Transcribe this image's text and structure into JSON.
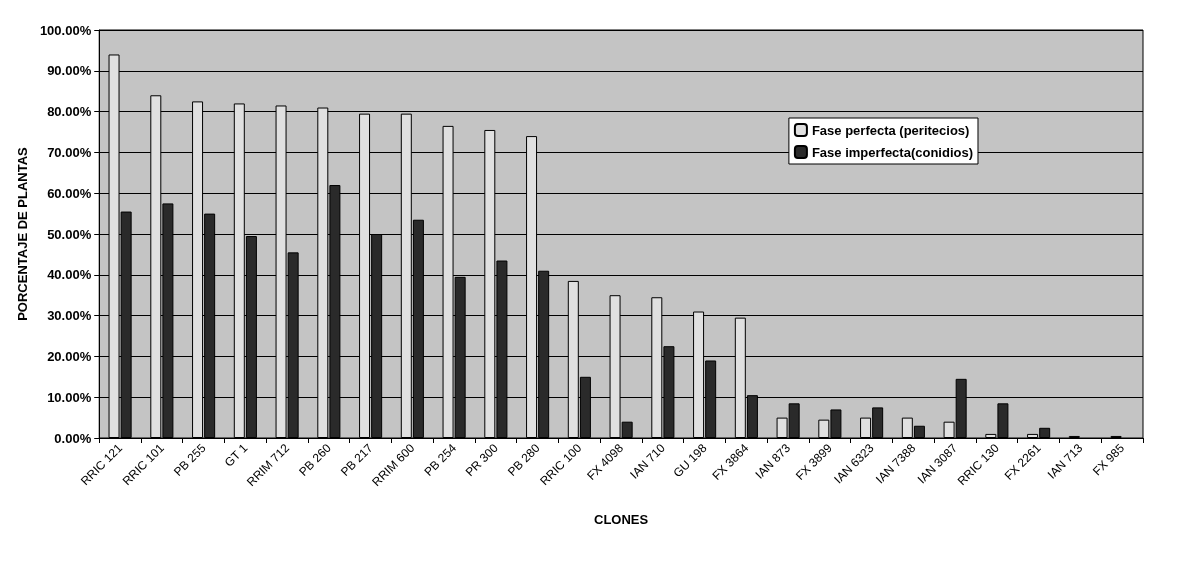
{
  "chart_data": {
    "type": "bar",
    "xlabel": "CLONES",
    "ylabel": "PORCENTAJE DE PLANTAS",
    "categories": [
      "RRIC 121",
      "RRIC 101",
      "PB 255",
      "GT 1",
      "RRIM 712",
      "PB 260",
      "PB 217",
      "RRIM 600",
      "PB 254",
      "PR 300",
      "PB 280",
      "RRIC 100",
      "FX 4098",
      "IAN 710",
      "GU 198",
      "FX 3864",
      "IAN 873",
      "FX 3899",
      "IAN 6323",
      "IAN 7388",
      "IAN 3087",
      "RRIC 130",
      "FX 2261",
      "IAN 713",
      "FX 985"
    ],
    "series": [
      {
        "name": "Fase perfecta (peritecios)",
        "color": "#e0e0e0",
        "values": [
          94,
          84,
          82.5,
          82,
          81.5,
          81,
          79.5,
          79.5,
          76.5,
          75.5,
          74,
          38.5,
          35,
          34.5,
          31,
          29.5,
          5,
          4.5,
          5,
          5,
          4,
          1,
          1,
          0.5,
          0.5
        ]
      },
      {
        "name": "Fase imperfecta(conidios)",
        "color": "#2a2a2a",
        "values": [
          55.5,
          57.5,
          55,
          49.5,
          45.5,
          62,
          50,
          53.5,
          39.5,
          43.5,
          41,
          15,
          4,
          22.5,
          19,
          10.5,
          8.5,
          7,
          7.5,
          3,
          14.5,
          8.5,
          2.5,
          0,
          0
        ]
      }
    ],
    "ylim": [
      0,
      100
    ],
    "yticks": [
      {
        "value": 0,
        "label": "0.00%"
      },
      {
        "value": 10,
        "label": "10.00%"
      },
      {
        "value": 20,
        "label": "20.00%"
      },
      {
        "value": 30,
        "label": "30.00%"
      },
      {
        "value": 40,
        "label": "40.00%"
      },
      {
        "value": 50,
        "label": "50.00%"
      },
      {
        "value": 60,
        "label": "60.00%"
      },
      {
        "value": 70,
        "label": "70.00%"
      },
      {
        "value": 80,
        "label": "80.00%"
      },
      {
        "value": 90,
        "label": "90.00%"
      },
      {
        "value": 100,
        "label": "100.00%"
      }
    ],
    "grid": "y",
    "legend": "right"
  }
}
